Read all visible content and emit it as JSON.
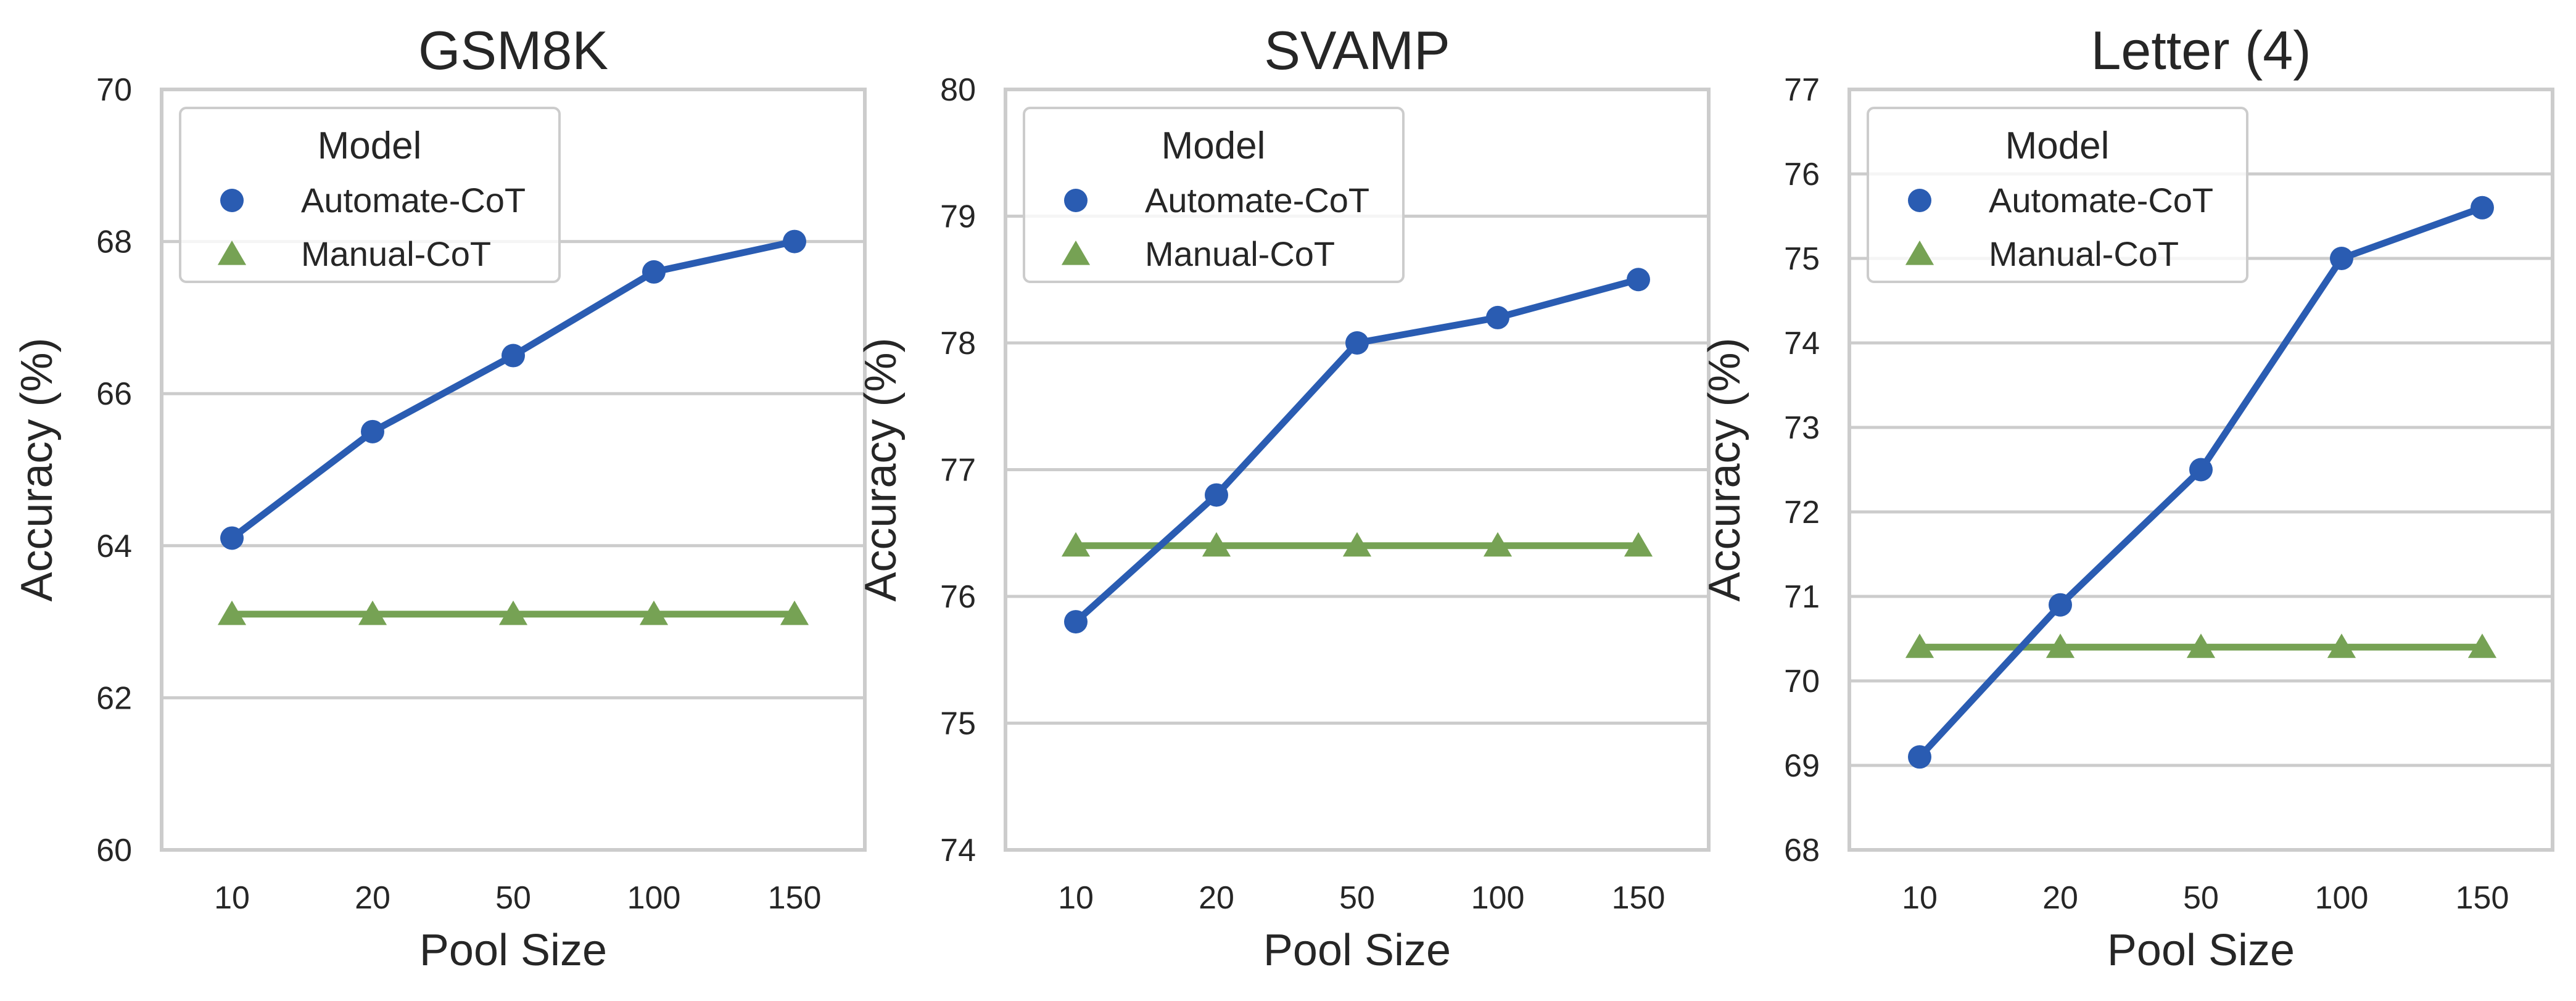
{
  "colors": {
    "automate": "#2a5cb2",
    "manual": "#76a254",
    "grid": "#cccccc",
    "text": "#262626"
  },
  "chart_data": [
    {
      "type": "line",
      "title": "GSM8K",
      "xlabel": "Pool Size",
      "ylabel": "Accuracy (%)",
      "categories": [
        "10",
        "20",
        "50",
        "100",
        "150"
      ],
      "ylim": [
        60,
        70
      ],
      "yticks": [
        60,
        62,
        64,
        66,
        68,
        70
      ],
      "grid": true,
      "legend": {
        "title": "Model",
        "position": "top-left"
      },
      "series": [
        {
          "name": "Automate-CoT",
          "marker": "circle",
          "values": [
            64.1,
            65.5,
            66.5,
            67.6,
            68.0
          ]
        },
        {
          "name": "Manual-CoT",
          "marker": "triangle",
          "values": [
            63.1,
            63.1,
            63.1,
            63.1,
            63.1
          ]
        }
      ]
    },
    {
      "type": "line",
      "title": "SVAMP",
      "xlabel": "Pool Size",
      "ylabel": "Accuracy (%)",
      "categories": [
        "10",
        "20",
        "50",
        "100",
        "150"
      ],
      "ylim": [
        74,
        80
      ],
      "yticks": [
        74,
        75,
        76,
        77,
        78,
        79,
        80
      ],
      "grid": true,
      "legend": {
        "title": "Model",
        "position": "top-left"
      },
      "series": [
        {
          "name": "Automate-CoT",
          "marker": "circle",
          "values": [
            75.8,
            76.8,
            78.0,
            78.2,
            78.5
          ]
        },
        {
          "name": "Manual-CoT",
          "marker": "triangle",
          "values": [
            76.4,
            76.4,
            76.4,
            76.4,
            76.4
          ]
        }
      ]
    },
    {
      "type": "line",
      "title": "Letter (4)",
      "xlabel": "Pool Size",
      "ylabel": "Accuracy (%)",
      "categories": [
        "10",
        "20",
        "50",
        "100",
        "150"
      ],
      "ylim": [
        68,
        77
      ],
      "yticks": [
        68,
        69,
        70,
        71,
        72,
        73,
        74,
        75,
        76,
        77
      ],
      "grid": true,
      "legend": {
        "title": "Model",
        "position": "top-left"
      },
      "series": [
        {
          "name": "Automate-CoT",
          "marker": "circle",
          "values": [
            69.1,
            70.9,
            72.5,
            75.0,
            75.6
          ]
        },
        {
          "name": "Manual-CoT",
          "marker": "triangle",
          "values": [
            70.4,
            70.4,
            70.4,
            70.4,
            70.4
          ]
        }
      ]
    }
  ]
}
